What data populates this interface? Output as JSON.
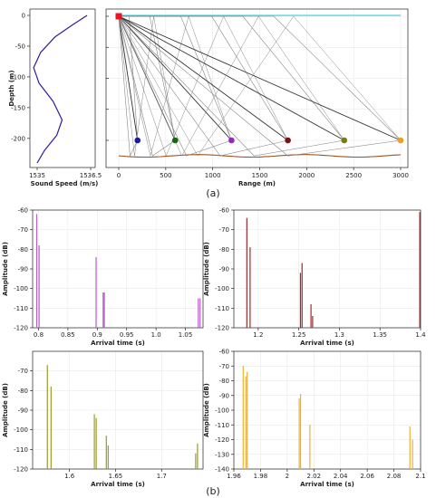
{
  "figure": {
    "caption_a": "(a)",
    "caption_b": "(b)"
  },
  "colors": {
    "profile": "#2a1ea0",
    "surface": "#2ec4d6",
    "bottom": "#a0521e",
    "ray": "#888888",
    "ray_strong": "#333333",
    "source": "#e8141e",
    "receivers": [
      "#1a1a9e",
      "#0c6a0c",
      "#9b23c4",
      "#7a1414",
      "#7a7a14",
      "#f0a020"
    ],
    "panels": [
      "#b85cc8",
      "#a02828",
      "#9a9a2a",
      "#f0b030"
    ]
  },
  "chart_data": [
    {
      "type": "line",
      "xlabel": "Sound Speed (m/s)",
      "ylabel": "Depth (m)",
      "xlim": [
        1535,
        1536.5
      ],
      "ylim": [
        0,
        -240
      ],
      "xticks": [
        "1535",
        "1536.5"
      ],
      "yticks": [
        0,
        -50,
        -100,
        -150,
        -200
      ],
      "x": [
        1536.4,
        1536.0,
        1535.5,
        1535.1,
        1534.9,
        1535.05,
        1535.45,
        1535.7,
        1535.55,
        1535.2,
        1535.0
      ],
      "y": [
        0,
        -15,
        -35,
        -60,
        -85,
        -110,
        -140,
        -170,
        -195,
        -220,
        -240
      ]
    },
    {
      "type": "scatter",
      "xlabel": "Range (m)",
      "xlim": [
        -80,
        3000
      ],
      "ylim": [
        0,
        -240
      ],
      "xticks": [
        0,
        500,
        1000,
        1500,
        2000,
        2500,
        3000
      ],
      "yticks": [
        0,
        -50,
        -100,
        -150,
        -200
      ],
      "source": {
        "x": 0,
        "y": 0
      },
      "receivers": [
        {
          "x": 200,
          "y": -200
        },
        {
          "x": 600,
          "y": -200
        },
        {
          "x": 1200,
          "y": -200
        },
        {
          "x": 1800,
          "y": -200
        },
        {
          "x": 2400,
          "y": -200
        },
        {
          "x": 3000,
          "y": -200
        }
      ],
      "bottom_depth": -225
    },
    {
      "type": "bar",
      "xlabel": "Arrival time (s)",
      "ylabel": "Amplitude (dB)",
      "xlim": [
        0.79,
        1.08
      ],
      "ylim": [
        -120,
        -60
      ],
      "xticks": [
        "0.8",
        "0.85",
        "0.9",
        "0.95",
        "1.0",
        "1.05"
      ],
      "yticks": [
        "-60",
        "-70",
        "-80",
        "-90",
        "-100",
        "-110",
        "-120"
      ],
      "series": [
        {
          "x": [
            0.797,
            0.801,
            0.898,
            0.91,
            0.912,
            1.072,
            1.075
          ],
          "values": [
            -62,
            -78,
            -84,
            -102,
            -102,
            -105,
            -105
          ]
        }
      ]
    },
    {
      "type": "bar",
      "xlabel": "Arrival time (s)",
      "ylabel": "Amplitude (dB)",
      "xlim": [
        1.17,
        1.4
      ],
      "ylim": [
        -120,
        -60
      ],
      "xticks": [
        "1.2",
        "1.25",
        "1.3",
        "1.35",
        "1.4"
      ],
      "yticks": [
        "-60",
        "-70",
        "-80",
        "-90",
        "-100",
        "-110",
        "-120"
      ],
      "series": [
        {
          "x": [
            1.186,
            1.19,
            1.252,
            1.254,
            1.265,
            1.267,
            1.399
          ],
          "values": [
            -64,
            -79,
            -92,
            -87,
            -108,
            -114,
            -61
          ]
        }
      ]
    },
    {
      "type": "bar",
      "xlabel": "Arrival time (s)",
      "ylabel": "Amplitude (dB)",
      "xlim": [
        1.56,
        1.745
      ],
      "ylim": [
        -120,
        -60
      ],
      "xticks": [
        "1.6",
        "1.65",
        "1.7"
      ],
      "yticks": [
        "-70",
        "-80",
        "-90",
        "-100",
        "-110",
        "-120"
      ],
      "series": [
        {
          "x": [
            1.576,
            1.58,
            1.627,
            1.629,
            1.64,
            1.642,
            1.737,
            1.739
          ],
          "values": [
            -67,
            -78,
            -92,
            -94,
            -103,
            -108,
            -112,
            -107
          ]
        }
      ]
    },
    {
      "type": "bar",
      "xlabel": "Arrival time (s)",
      "ylabel": "Amplitude (dB)",
      "xlim": [
        1.96,
        2.1
      ],
      "ylim": [
        -140,
        -60
      ],
      "xticks": [
        "1.96",
        "1.98",
        "2",
        "2.02",
        "2.04",
        "2.06",
        "2.08",
        "2.1"
      ],
      "yticks": [
        "-60",
        "-70",
        "-80",
        "-90",
        "-100",
        "-110",
        "-120",
        "-130",
        "-140"
      ],
      "series": [
        {
          "x": [
            1.967,
            1.969,
            1.97,
            2.009,
            2.01,
            2.017,
            2.092,
            2.094
          ],
          "values": [
            -70,
            -77,
            -74,
            -92,
            -89,
            -110,
            -111,
            -120
          ]
        }
      ]
    }
  ]
}
